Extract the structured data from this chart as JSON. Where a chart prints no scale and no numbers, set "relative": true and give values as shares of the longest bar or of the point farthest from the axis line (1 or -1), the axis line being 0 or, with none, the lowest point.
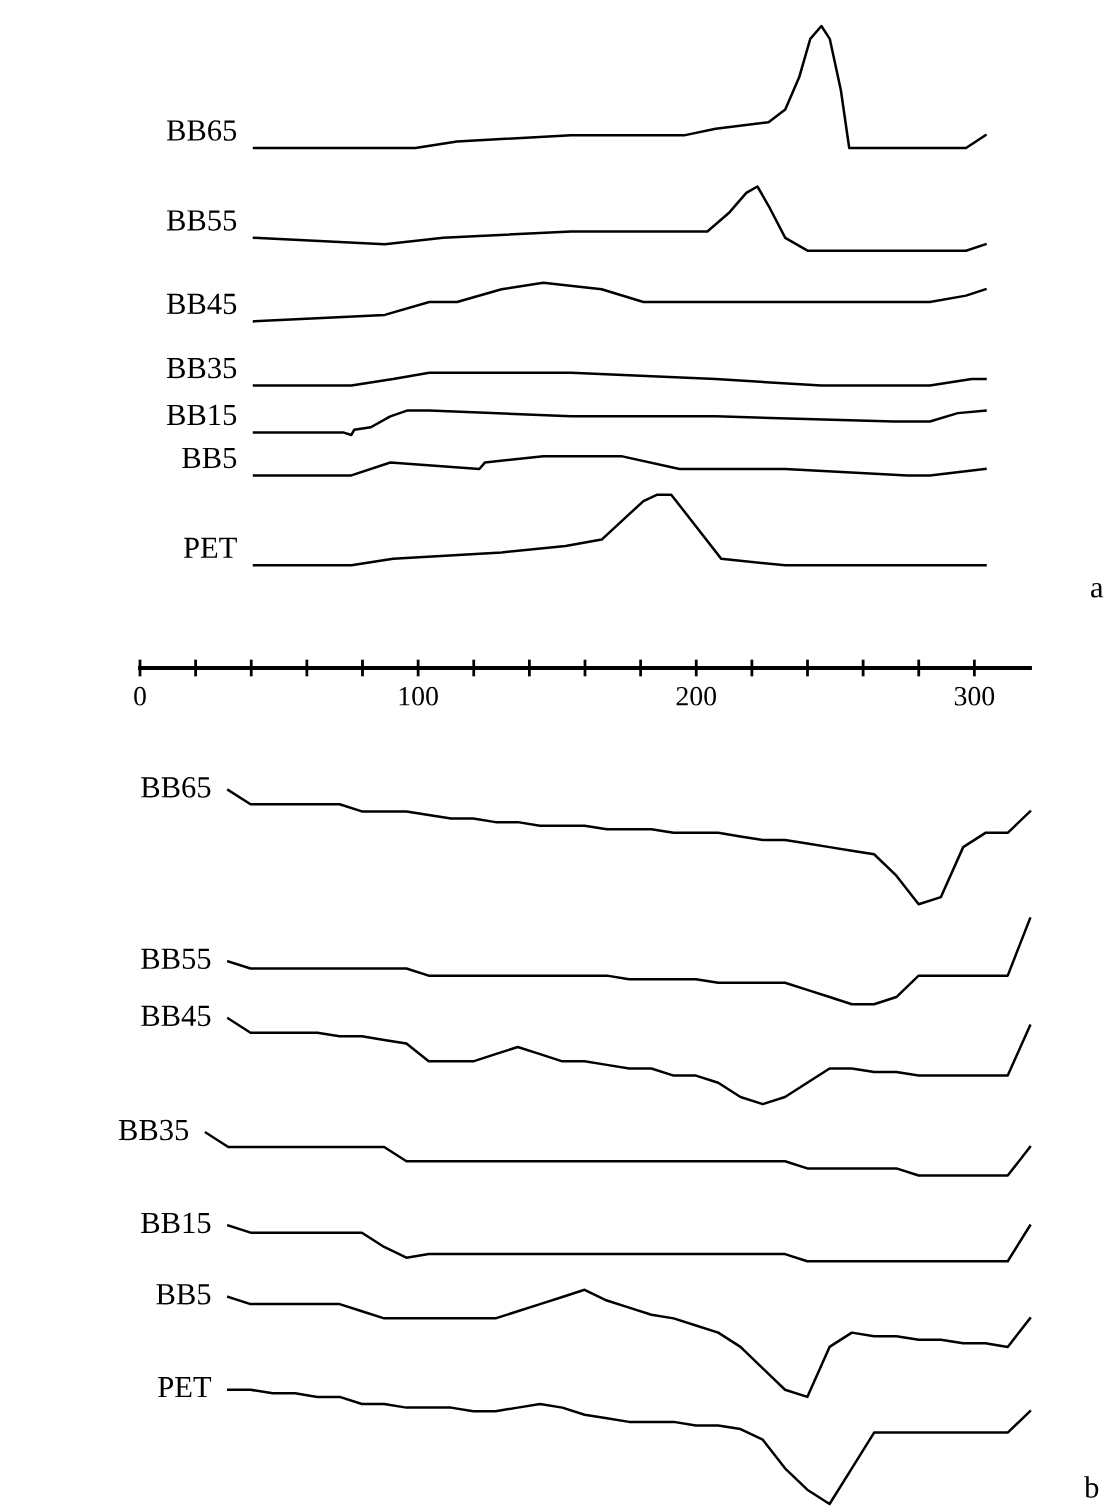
{
  "chart_data": [
    {
      "type": "line",
      "relative": true,
      "xlim": [
        0,
        320
      ],
      "xticks": [
        0,
        {
          "value": 20,
          "label": null
        },
        {
          "value": 40,
          "label": null
        },
        {
          "value": 60,
          "label": null
        },
        {
          "value": 80,
          "label": null
        },
        100,
        {
          "value": 120,
          "label": null
        },
        {
          "value": 140,
          "label": null
        },
        {
          "value": 160,
          "label": null
        },
        {
          "value": 180,
          "label": null
        },
        200,
        {
          "value": 220,
          "label": null
        },
        {
          "value": 240,
          "label": null
        },
        {
          "value": 260,
          "label": null
        },
        {
          "value": 280,
          "label": null
        },
        300
      ],
      "grid": false,
      "legend": false,
      "annotations": [
        "a"
      ],
      "series": [
        {
          "name": "BB65",
          "color": "#000000",
          "x": [
            41,
            99,
            114,
            155,
            176,
            196,
            207,
            226,
            232,
            237,
            241,
            245,
            248,
            252,
            255,
            261,
            273,
            286,
            297,
            304
          ],
          "values": [
            0.81,
            0.81,
            0.82,
            0.83,
            0.83,
            0.83,
            0.84,
            0.85,
            0.87,
            0.92,
            0.98,
            1.0,
            0.98,
            0.9,
            0.81,
            0.81,
            0.81,
            0.81,
            0.81,
            0.83
          ]
        },
        {
          "name": "BB55",
          "color": "#000000",
          "x": [
            41,
            88,
            109,
            155,
            204,
            212,
            218,
            222,
            226,
            232,
            240,
            258,
            286,
            297,
            304
          ],
          "values": [
            0.67,
            0.66,
            0.67,
            0.68,
            0.68,
            0.71,
            0.74,
            0.75,
            0.72,
            0.67,
            0.65,
            0.65,
            0.65,
            0.65,
            0.66
          ]
        },
        {
          "name": "BB45",
          "color": "#000000",
          "x": [
            41,
            88,
            104,
            114,
            130,
            145,
            166,
            181,
            207,
            222,
            235,
            258,
            284,
            297,
            304
          ],
          "values": [
            0.54,
            0.55,
            0.57,
            0.57,
            0.59,
            0.6,
            0.59,
            0.57,
            0.57,
            0.57,
            0.57,
            0.57,
            0.57,
            0.58,
            0.59
          ]
        },
        {
          "name": "BB35",
          "color": "#000000",
          "x": [
            41,
            76,
            91,
            104,
            112,
            155,
            207,
            245,
            284,
            299,
            304
          ],
          "values": [
            0.44,
            0.44,
            0.45,
            0.46,
            0.46,
            0.46,
            0.45,
            0.44,
            0.44,
            0.45,
            0.45
          ]
        },
        {
          "name": "BB15",
          "color": "#000000",
          "x": [
            41,
            73,
            76,
            77,
            83,
            90,
            96,
            104,
            155,
            207,
            271,
            284,
            294,
            304
          ],
          "values": [
            0.367,
            0.367,
            0.363,
            0.371,
            0.375,
            0.392,
            0.401,
            0.401,
            0.392,
            0.392,
            0.384,
            0.384,
            0.397,
            0.401
          ]
        },
        {
          "name": "BB5",
          "color": "#000000",
          "x": [
            41,
            76,
            90,
            122,
            124,
            145,
            163,
            173,
            194,
            207,
            232,
            276,
            284,
            304
          ],
          "values": [
            0.3,
            0.3,
            0.32,
            0.31,
            0.32,
            0.33,
            0.33,
            0.33,
            0.31,
            0.31,
            0.31,
            0.3,
            0.3,
            0.31
          ]
        },
        {
          "name": "PET",
          "color": "#000000",
          "x": [
            41,
            76,
            91,
            130,
            153,
            166,
            176,
            181,
            186,
            191,
            200,
            209,
            232,
            273,
            286,
            304
          ],
          "values": [
            0.16,
            0.16,
            0.17,
            0.18,
            0.19,
            0.2,
            0.24,
            0.26,
            0.27,
            0.27,
            0.22,
            0.17,
            0.16,
            0.16,
            0.16,
            0.16
          ]
        }
      ]
    },
    {
      "type": "line",
      "relative": true,
      "tick_labels": false,
      "grid": false,
      "legend": false,
      "annotations": [
        "b"
      ],
      "categories": [
        null,
        null,
        null,
        null,
        null,
        null,
        null,
        null,
        null,
        null,
        null,
        null,
        null,
        null,
        null,
        null,
        null,
        null,
        null,
        null,
        null,
        null,
        null,
        null,
        null,
        null,
        null,
        null,
        null,
        null,
        null,
        null,
        null,
        null,
        null,
        null,
        null,
        null
      ],
      "series": [
        {
          "name": "BB65",
          "color": "#000000",
          "values": [
            null,
            1.0,
            0.98,
            0.98,
            0.98,
            0.98,
            0.98,
            0.97,
            0.97,
            0.97,
            0.965,
            0.96,
            0.96,
            0.955,
            0.955,
            0.95,
            0.95,
            0.95,
            0.945,
            0.945,
            0.945,
            0.94,
            0.94,
            0.94,
            0.935,
            0.93,
            0.93,
            0.925,
            0.92,
            0.915,
            0.91,
            0.88,
            0.84,
            0.85,
            0.92,
            0.94,
            0.94,
            0.97
          ]
        },
        {
          "name": "BB55",
          "color": "#000000",
          "values": [
            null,
            0.76,
            0.75,
            0.75,
            0.75,
            0.75,
            0.75,
            0.75,
            0.75,
            0.75,
            0.74,
            0.74,
            0.74,
            0.74,
            0.74,
            0.74,
            0.74,
            0.74,
            0.74,
            0.735,
            0.735,
            0.735,
            0.735,
            0.73,
            0.73,
            0.73,
            0.73,
            0.72,
            0.71,
            0.7,
            0.7,
            0.71,
            0.74,
            0.74,
            0.74,
            0.74,
            0.74,
            0.82
          ]
        },
        {
          "name": "BB45",
          "color": "#000000",
          "values": [
            null,
            0.68,
            0.66,
            0.66,
            0.66,
            0.66,
            0.655,
            0.655,
            0.65,
            0.645,
            0.62,
            0.62,
            0.62,
            0.63,
            0.64,
            0.63,
            0.62,
            0.62,
            0.615,
            0.61,
            0.61,
            0.6,
            0.6,
            0.59,
            0.57,
            0.56,
            0.57,
            0.59,
            0.61,
            0.61,
            0.605,
            0.605,
            0.6,
            0.6,
            0.6,
            0.6,
            0.6,
            0.67
          ]
        },
        {
          "name": "BB35",
          "color": "#000000",
          "values": [
            0.52,
            0.5,
            0.5,
            0.5,
            0.5,
            0.5,
            0.5,
            0.5,
            0.5,
            0.48,
            0.48,
            0.48,
            0.48,
            0.48,
            0.48,
            0.48,
            0.48,
            0.48,
            0.48,
            0.48,
            0.48,
            0.48,
            0.48,
            0.48,
            0.48,
            0.48,
            0.48,
            0.47,
            0.47,
            0.47,
            0.47,
            0.47,
            0.46,
            0.46,
            0.46,
            0.46,
            0.46,
            0.5
          ]
        },
        {
          "name": "BB15",
          "color": "#000000",
          "values": [
            null,
            0.39,
            0.38,
            0.38,
            0.38,
            0.38,
            0.38,
            0.38,
            0.36,
            0.345,
            0.35,
            0.35,
            0.35,
            0.35,
            0.35,
            0.35,
            0.35,
            0.35,
            0.35,
            0.35,
            0.35,
            0.35,
            0.35,
            0.35,
            0.35,
            0.35,
            0.35,
            0.34,
            0.34,
            0.34,
            0.34,
            0.34,
            0.34,
            0.34,
            0.34,
            0.34,
            0.34,
            0.39
          ]
        },
        {
          "name": "BB5",
          "color": "#000000",
          "values": [
            null,
            0.29,
            0.28,
            0.28,
            0.28,
            0.28,
            0.28,
            0.27,
            0.26,
            0.26,
            0.26,
            0.26,
            0.26,
            0.26,
            0.27,
            0.28,
            0.29,
            0.3,
            0.285,
            0.275,
            0.265,
            0.26,
            0.25,
            0.24,
            0.22,
            0.19,
            0.16,
            0.15,
            0.22,
            0.24,
            0.235,
            0.235,
            0.23,
            0.23,
            0.225,
            0.225,
            0.22,
            0.26
          ]
        },
        {
          "name": "PET",
          "color": "#000000",
          "values": [
            null,
            0.16,
            0.16,
            0.155,
            0.155,
            0.15,
            0.15,
            0.14,
            0.14,
            0.135,
            0.135,
            0.135,
            0.13,
            0.13,
            0.135,
            0.14,
            0.135,
            0.125,
            0.12,
            0.115,
            0.115,
            0.115,
            0.11,
            0.11,
            0.105,
            0.09,
            0.05,
            0.02,
            0.0,
            0.05,
            0.1,
            0.1,
            0.1,
            0.1,
            0.1,
            0.1,
            0.1,
            0.13
          ]
        }
      ]
    }
  ]
}
